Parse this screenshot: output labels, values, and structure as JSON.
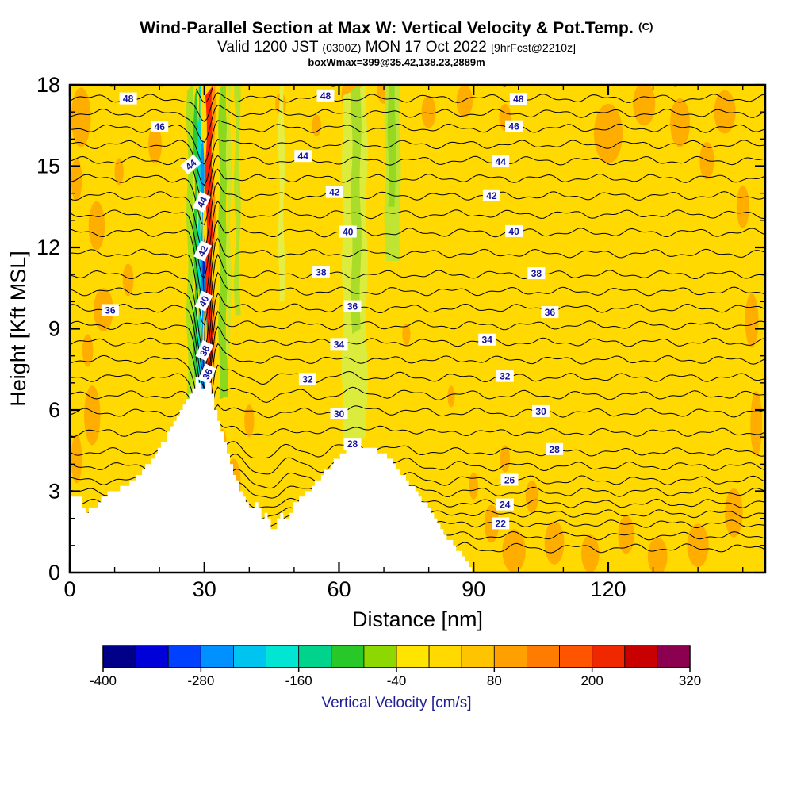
{
  "header": {
    "title": "Wind-Parallel Section at Max W: Vertical Velocity & Pot.Temp.",
    "title_suffix": "(C)",
    "subtitle_1": "Valid 1200 JST ",
    "subtitle_2": "(0300Z)",
    "subtitle_3": " MON 17 Oct 2022 ",
    "subtitle_4": "[9hrFcst@2210z]",
    "note": "boxWmax=399@35.42,138.23,2889m"
  },
  "chart_data": {
    "type": "heatmap",
    "title": "Wind-Parallel Section at Max W: Vertical Velocity & Pot.Temp. (C)",
    "subtitle": "Valid 1200 JST (0300Z) MON 17 Oct 2022 [9hrFcst@2210z]",
    "annotation": "boxWmax=399@35.42,138.23,2889m",
    "xlabel": "Distance [nm]",
    "ylabel": "Height [Kft MSL]",
    "xlim": [
      0,
      155
    ],
    "ylim": [
      0,
      18
    ],
    "xticks": [
      0,
      30,
      60,
      90,
      120
    ],
    "xtick_minor_step": 10,
    "yticks": [
      0,
      3,
      6,
      9,
      12,
      15,
      18
    ],
    "ytick_minor_step": 1,
    "grid": false,
    "field": {
      "quantity": "vertical velocity",
      "units": "cm/s",
      "background": "#FFD900",
      "patch_color": "#FFAE00",
      "orange_patches": [
        [
          2.5,
          16.8,
          2.2,
          1.1
        ],
        [
          1.5,
          14.5,
          1.2,
          0.8
        ],
        [
          6,
          12.8,
          1.8,
          0.9
        ],
        [
          7.5,
          9.7,
          2.2,
          0.8
        ],
        [
          4,
          8.2,
          1.2,
          0.6
        ],
        [
          5,
          5.8,
          1.8,
          1.1
        ],
        [
          1.5,
          4.2,
          1.2,
          0.9
        ],
        [
          13,
          10.8,
          1.2,
          0.6
        ],
        [
          19,
          15.8,
          1.5,
          0.7
        ],
        [
          11,
          14.8,
          1.0,
          0.5
        ],
        [
          36.5,
          3.3,
          1.6,
          0.9
        ],
        [
          40,
          5.6,
          1.1,
          0.6
        ],
        [
          34,
          4.8,
          0.9,
          0.5
        ],
        [
          63,
          17.6,
          2.5,
          0.7
        ],
        [
          70,
          17.8,
          1.5,
          0.5
        ],
        [
          80,
          17.0,
          1.6,
          0.6
        ],
        [
          88,
          17.4,
          1.8,
          0.6
        ],
        [
          97,
          16.8,
          1.3,
          0.5
        ],
        [
          120,
          16.2,
          3.2,
          1.1
        ],
        [
          128,
          17.3,
          2.5,
          0.8
        ],
        [
          136,
          16.6,
          2.2,
          0.9
        ],
        [
          146,
          17.0,
          2.4,
          0.8
        ],
        [
          142,
          15.2,
          1.6,
          0.7
        ],
        [
          150,
          13.5,
          1.4,
          0.8
        ],
        [
          152,
          9.3,
          1.5,
          1.0
        ],
        [
          153,
          5.5,
          1.3,
          1.2
        ],
        [
          148,
          2.2,
          2.0,
          0.9
        ],
        [
          140,
          1.0,
          2.4,
          0.8
        ],
        [
          131,
          0.6,
          2.2,
          0.7
        ],
        [
          124,
          1.4,
          1.8,
          0.7
        ],
        [
          116,
          0.7,
          2.0,
          0.7
        ],
        [
          108,
          1.1,
          2.2,
          0.8
        ],
        [
          99,
          0.8,
          2.6,
          0.8
        ],
        [
          94,
          1.8,
          1.6,
          0.7
        ],
        [
          103,
          2.8,
          1.4,
          0.6
        ],
        [
          97,
          4.2,
          1.1,
          0.5
        ],
        [
          90,
          3.2,
          1.0,
          0.5
        ],
        [
          75,
          8.8,
          0.9,
          0.4
        ],
        [
          85,
          6.5,
          0.8,
          0.4
        ],
        [
          55,
          16.5,
          1.0,
          0.4
        ],
        [
          47,
          17.3,
          1.2,
          0.4
        ]
      ],
      "bands": [
        {
          "x0": 26.2,
          "x1": 27.7,
          "y0": 5.3,
          "y1": 18,
          "color": "#A8E020"
        },
        {
          "x0": 27.7,
          "x1": 28.6,
          "y0": 5.6,
          "y1": 18,
          "color": "#30C830"
        },
        {
          "x0": 28.6,
          "x1": 29.3,
          "y0": 5.9,
          "y1": 18,
          "color": "#00DCC8"
        },
        {
          "x0": 29.3,
          "x1": 29.8,
          "y0": 6.2,
          "y1": 16,
          "color": "#0090FF"
        },
        {
          "x0": 29.8,
          "x1": 30.15,
          "y0": 6.4,
          "y1": 12.5,
          "color": "#0018B4"
        },
        {
          "x0": 30.15,
          "x1": 30.45,
          "y0": 6.5,
          "y1": 11,
          "color": "#00DCC8"
        },
        {
          "x0": 30.35,
          "x1": 31.8,
          "y0": 6.6,
          "y1": 18,
          "color": "#FF2400"
        },
        {
          "x0": 31.8,
          "x1": 32.3,
          "y0": 6.7,
          "y1": 18,
          "color": "#FF9800"
        },
        {
          "x0": 33.3,
          "x1": 35.0,
          "y0": 6.4,
          "y1": 18,
          "color": "#8CD81E"
        },
        {
          "x0": 35.0,
          "x1": 35.9,
          "y0": 8.0,
          "y1": 18,
          "color": "#C8E630"
        },
        {
          "x0": 36.8,
          "x1": 37.9,
          "y0": 9.5,
          "y1": 18,
          "color": "#B4E028"
        },
        {
          "x0": 46.6,
          "x1": 47.8,
          "y0": 10.0,
          "y1": 18,
          "color": "#E6EE46"
        },
        {
          "x0": 60.8,
          "x1": 66.2,
          "y0": 4.6,
          "y1": 18,
          "color": "#DCEC3C"
        },
        {
          "x0": 62.8,
          "x1": 64.8,
          "y0": 8.8,
          "y1": 18,
          "color": "#AADC2A"
        },
        {
          "x0": 70.3,
          "x1": 73.6,
          "y0": 11.5,
          "y1": 18,
          "color": "#C0E432"
        },
        {
          "x0": 71.0,
          "x1": 72.6,
          "y0": 13.5,
          "y1": 18,
          "color": "#96D822"
        }
      ]
    },
    "wave": {
      "x": 29.9,
      "width": 2.0,
      "dip": 2.4,
      "rebound": 1.6,
      "wavelength": 13,
      "decay": 26
    },
    "isentropes": {
      "quantity": "potential temperature",
      "units": "C",
      "min": 20,
      "max": 50,
      "interval": 1,
      "line_color": "#000000",
      "label_color": "#1414A0",
      "levels": [
        [
          20,
          0.9
        ],
        [
          22,
          1.8
        ],
        [
          24,
          2.55
        ],
        [
          26,
          3.4
        ],
        [
          28,
          4.45
        ],
        [
          30,
          5.9
        ],
        [
          32,
          7.2
        ],
        [
          34,
          8.5
        ],
        [
          36,
          9.75
        ],
        [
          38,
          11.0
        ],
        [
          40,
          12.55
        ],
        [
          42,
          13.9
        ],
        [
          44,
          15.2
        ],
        [
          46,
          16.4
        ],
        [
          48,
          17.5
        ],
        [
          50,
          18.7
        ]
      ],
      "labeled_values": [
        22,
        24,
        26,
        28,
        30,
        32,
        34,
        36,
        38,
        40,
        42,
        44,
        46,
        48
      ],
      "labels": [
        {
          "v": 48,
          "x": 13
        },
        {
          "v": 48,
          "x": 57
        },
        {
          "v": 48,
          "x": 100
        },
        {
          "v": 46,
          "x": 20
        },
        {
          "v": 46,
          "x": 99
        },
        {
          "v": 44,
          "x": 27,
          "rot": -40
        },
        {
          "v": 44,
          "x": 52
        },
        {
          "v": 44,
          "x": 96
        },
        {
          "v": 44,
          "x": 29.5,
          "rot": -65
        },
        {
          "v": 42,
          "x": 29.7,
          "rot": -65
        },
        {
          "v": 42,
          "x": 59
        },
        {
          "v": 42,
          "x": 94
        },
        {
          "v": 40,
          "x": 29.9,
          "rot": -65
        },
        {
          "v": 40,
          "x": 62
        },
        {
          "v": 40,
          "x": 99
        },
        {
          "v": 38,
          "x": 30.1,
          "rot": -65
        },
        {
          "v": 38,
          "x": 56
        },
        {
          "v": 38,
          "x": 104
        },
        {
          "v": 36,
          "x": 9
        },
        {
          "v": 36,
          "x": 30.7,
          "rot": -65
        },
        {
          "v": 36,
          "x": 63
        },
        {
          "v": 36,
          "x": 107
        },
        {
          "v": 34,
          "x": 60
        },
        {
          "v": 34,
          "x": 93
        },
        {
          "v": 32,
          "x": 53
        },
        {
          "v": 32,
          "x": 97
        },
        {
          "v": 30,
          "x": 60
        },
        {
          "v": 30,
          "x": 105
        },
        {
          "v": 28,
          "x": 63
        },
        {
          "v": 28,
          "x": 108
        },
        {
          "v": 26,
          "x": 98
        },
        {
          "v": 24,
          "x": 97
        },
        {
          "v": 22,
          "x": 96
        }
      ]
    },
    "terrain_profile": [
      [
        0,
        2.9
      ],
      [
        2,
        2.9
      ],
      [
        3,
        2.2
      ],
      [
        5,
        2.4
      ],
      [
        7,
        2.7
      ],
      [
        9,
        3.0
      ],
      [
        11,
        3.1
      ],
      [
        13,
        3.3
      ],
      [
        15,
        3.6
      ],
      [
        17,
        4.0
      ],
      [
        19,
        4.4
      ],
      [
        21,
        4.9
      ],
      [
        23,
        5.5
      ],
      [
        24.5,
        6.0
      ],
      [
        26,
        6.5
      ],
      [
        27.3,
        6.9
      ],
      [
        28.2,
        7.2
      ],
      [
        29.2,
        6.7
      ],
      [
        30.0,
        7.1
      ],
      [
        31.0,
        6.9
      ],
      [
        31.8,
        6.3
      ],
      [
        32.6,
        5.8
      ],
      [
        33.6,
        5.1
      ],
      [
        34.8,
        4.5
      ],
      [
        36,
        3.8
      ],
      [
        37.5,
        3.2
      ],
      [
        39,
        2.7
      ],
      [
        40.5,
        2.3
      ],
      [
        41.6,
        2.8
      ],
      [
        42.6,
        1.9
      ],
      [
        43.8,
        2.4
      ],
      [
        44.6,
        1.6
      ],
      [
        45.8,
        1.5
      ],
      [
        46.6,
        2.3
      ],
      [
        47.6,
        1.9
      ],
      [
        48.8,
        2.2
      ],
      [
        50,
        2.6
      ],
      [
        52,
        2.9
      ],
      [
        54,
        3.2
      ],
      [
        56,
        3.6
      ],
      [
        58,
        4.0
      ],
      [
        60,
        4.3
      ],
      [
        62,
        4.55
      ],
      [
        64,
        4.65
      ],
      [
        66,
        4.7
      ],
      [
        68,
        4.55
      ],
      [
        70,
        4.35
      ],
      [
        72,
        4.0
      ],
      [
        74,
        3.6
      ],
      [
        76,
        3.2
      ],
      [
        78,
        2.8
      ],
      [
        80,
        2.3
      ],
      [
        82,
        1.8
      ],
      [
        84,
        1.3
      ],
      [
        86,
        0.9
      ],
      [
        88,
        0.5
      ],
      [
        89.5,
        0.1
      ],
      [
        90,
        0
      ]
    ],
    "colorbar": {
      "label": "Vertical Velocity [cm/s]",
      "label_color": "#1E1E96",
      "min": -400,
      "max": 320,
      "step": 40,
      "tick_values": [
        -400,
        -280,
        -160,
        -40,
        80,
        200,
        320
      ],
      "colors": [
        "#000089",
        "#0000D8",
        "#0040FF",
        "#0090FF",
        "#00C4F0",
        "#00E6D2",
        "#00D48C",
        "#28C828",
        "#8CD800",
        "#FFE400",
        "#FFD900",
        "#FFC400",
        "#FFA000",
        "#FF7C00",
        "#FF5400",
        "#F02800",
        "#C80000",
        "#8C0050"
      ]
    }
  }
}
